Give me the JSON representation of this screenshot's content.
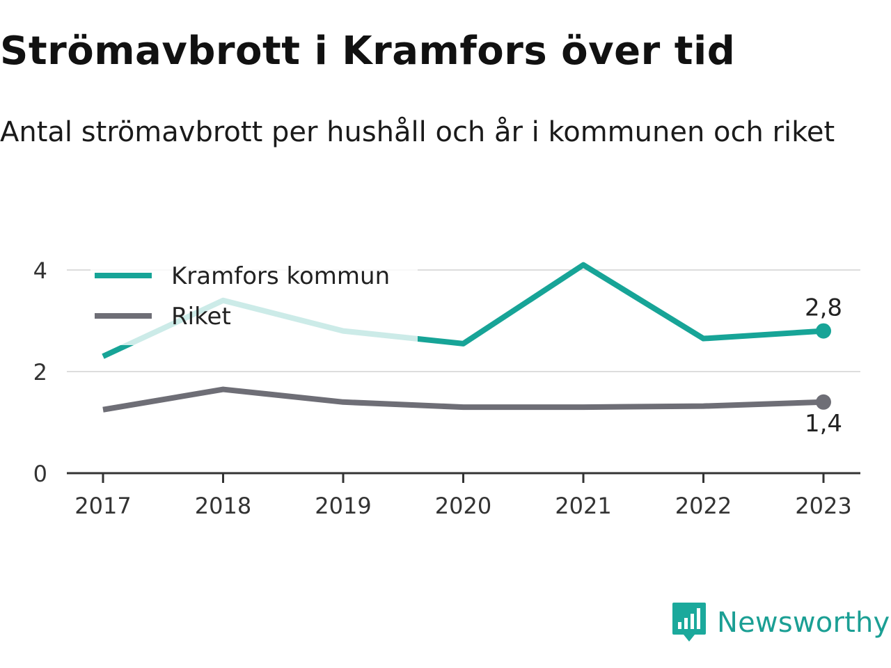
{
  "title": "Strömavbrott i Kramfors över tid",
  "subtitle": "Antal strömavbrott per hushåll och år i kommunen och riket",
  "colors": {
    "kramfors": "#17a497",
    "kramfors_faded": "#cdeeea",
    "riket": "#6e6e76",
    "grid": "#dddddd",
    "axis": "#333333"
  },
  "chart_data": {
    "type": "line",
    "title": "Strömavbrott i Kramfors över tid",
    "subtitle": "Antal strömavbrott per hushåll och år i kommunen och riket",
    "xlabel": "",
    "ylabel": "",
    "x": [
      "2017",
      "2018",
      "2019",
      "2020",
      "2021",
      "2022",
      "2023"
    ],
    "ylim": [
      0,
      4
    ],
    "yticks": [
      "0",
      "2",
      "4"
    ],
    "grid": true,
    "legend_position": "top-left",
    "series": [
      {
        "name": "Kramfors kommun",
        "values": [
          2.3,
          3.4,
          2.8,
          2.55,
          4.1,
          2.65,
          2.8
        ],
        "end_label": "2,8",
        "color": "#17a497"
      },
      {
        "name": "Riket",
        "values": [
          1.25,
          1.65,
          1.4,
          1.3,
          1.3,
          1.32,
          1.4
        ],
        "end_label": "1,4",
        "color": "#6e6e76"
      }
    ]
  },
  "logo": {
    "text": "Newsworthy",
    "icon": "newsworthy-bar-chart-icon"
  }
}
